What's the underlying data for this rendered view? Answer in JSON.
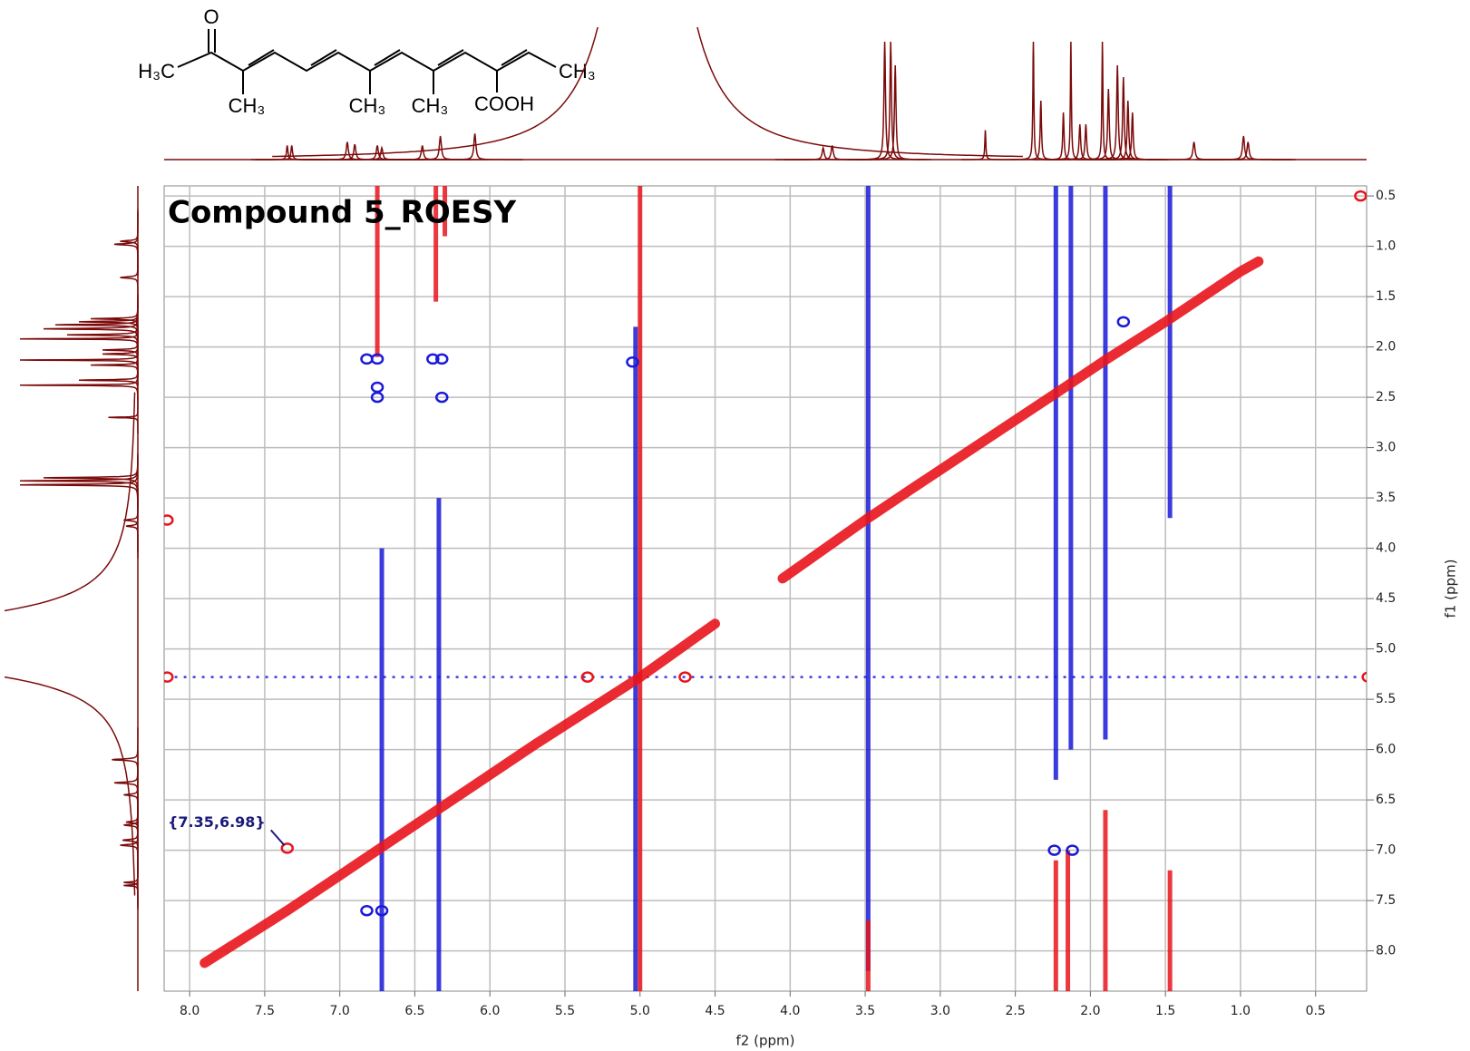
{
  "chart_data": {
    "type": "contour",
    "title": "Compound 5_ROESY",
    "xlabel": "f2 (ppm)",
    "ylabel": "f1 (ppm)",
    "annotation": "{7.35,6.98}",
    "xlim": [
      8.17,
      0.16
    ],
    "ylim": [
      0.4,
      8.4
    ],
    "xticks": [
      {
        "value": 8,
        "label": "8.0"
      },
      7.5,
      {
        "value": 7,
        "label": "7.0"
      },
      6.5,
      {
        "value": 6,
        "label": "6.0"
      },
      5.5,
      {
        "value": 5,
        "label": "5.0"
      },
      4.5,
      {
        "value": 4,
        "label": "4.0"
      },
      3.5,
      {
        "value": 3,
        "label": "3.0"
      },
      2.5,
      {
        "value": 2,
        "label": "2.0"
      },
      1.5,
      {
        "value": 1,
        "label": "1.0"
      },
      0.5
    ],
    "yticks": [
      0.5,
      {
        "value": 1,
        "label": "1.0"
      },
      1.5,
      {
        "value": 2,
        "label": "2.0"
      },
      2.5,
      {
        "value": 3,
        "label": "3.0"
      },
      3.5,
      {
        "value": 4,
        "label": "4.0"
      },
      4.5,
      {
        "value": 5,
        "label": "5.0"
      },
      5.5,
      {
        "value": 6,
        "label": "6.0"
      },
      6.5,
      {
        "value": 7,
        "label": "7.0"
      },
      7.5,
      {
        "value": 8,
        "label": "8.0"
      }
    ],
    "grid": true,
    "diagonal": {
      "color": "#e8141c",
      "x": [
        7.9,
        7.35,
        6.75,
        6.35,
        5.7,
        5.0,
        4.5,
        null,
        4.05,
        3.5,
        3.2,
        2.25,
        1.9,
        1.5,
        1.0,
        0.88
      ],
      "y": [
        8.12,
        7.6,
        7.0,
        6.6,
        5.95,
        5.28,
        4.75,
        null,
        4.3,
        3.72,
        3.42,
        2.48,
        2.13,
        1.75,
        1.25,
        1.15
      ]
    },
    "series": [
      {
        "color": "#e8141c",
        "x": [
          7.35,
          5.35,
          4.7,
          8.15,
          8.15,
          0.15,
          0.2
        ],
        "y": [
          6.98,
          5.28,
          5.28,
          3.72,
          5.28,
          5.28,
          0.5
        ]
      },
      {
        "color": "#1a1ad8",
        "x": [
          6.82,
          6.75,
          6.75,
          6.75,
          6.38,
          6.32,
          6.32,
          5.05,
          6.72,
          6.82,
          2.24,
          2.12,
          1.78
        ],
        "y": [
          2.12,
          2.12,
          2.4,
          2.5,
          2.12,
          2.12,
          2.5,
          2.15,
          7.6,
          7.6,
          7.0,
          7.0,
          1.75
        ]
      }
    ],
    "streaks": [
      {
        "color": "#e8141c",
        "x": [
          6.75,
          6.75
        ],
        "y": [
          0.4,
          2.1
        ]
      },
      {
        "color": "#e8141c",
        "x": [
          6.36,
          6.36
        ],
        "y": [
          0.4,
          1.55
        ]
      },
      {
        "color": "#e8141c",
        "x": [
          6.3,
          6.3
        ],
        "y": [
          0.4,
          0.9
        ]
      },
      {
        "color": "#1a1ad8",
        "x": [
          6.72,
          6.72
        ],
        "y": [
          4.0,
          8.4
        ]
      },
      {
        "color": "#1a1ad8",
        "x": [
          6.34,
          6.34
        ],
        "y": [
          3.5,
          8.4
        ]
      },
      {
        "color": "#1a1ad8",
        "x": [
          5.03,
          5.03
        ],
        "y": [
          1.8,
          8.4
        ]
      },
      {
        "color": "#e8141c",
        "x": [
          5.0,
          5.0
        ],
        "y": [
          0.4,
          8.4
        ]
      },
      {
        "color": "#1a1ad8",
        "x": [
          3.48,
          3.48
        ],
        "y": [
          0.4,
          8.2
        ]
      },
      {
        "color": "#e8141c",
        "x": [
          3.48,
          3.48
        ],
        "y": [
          7.7,
          8.4
        ]
      },
      {
        "color": "#1a1ad8",
        "x": [
          2.23,
          2.23
        ],
        "y": [
          0.4,
          6.3
        ]
      },
      {
        "color": "#1a1ad8",
        "x": [
          2.13,
          2.13
        ],
        "y": [
          0.4,
          6.0
        ]
      },
      {
        "color": "#1a1ad8",
        "x": [
          1.9,
          1.9
        ],
        "y": [
          0.4,
          5.9
        ]
      },
      {
        "color": "#1a1ad8",
        "x": [
          1.47,
          1.47
        ],
        "y": [
          0.4,
          3.7
        ]
      },
      {
        "color": "#e8141c",
        "x": [
          2.23,
          2.23
        ],
        "y": [
          7.1,
          8.4
        ]
      },
      {
        "color": "#e8141c",
        "x": [
          2.15,
          2.15
        ],
        "y": [
          7.0,
          8.4
        ]
      },
      {
        "color": "#e8141c",
        "x": [
          1.9,
          1.9
        ],
        "y": [
          6.6,
          8.4
        ]
      },
      {
        "color": "#e8141c",
        "x": [
          1.47,
          1.47
        ],
        "y": [
          7.2,
          8.4
        ]
      },
      {
        "color": "#1a1ad8",
        "x": [
          8.1,
          0.2
        ],
        "y": [
          5.28,
          5.28
        ]
      }
    ],
    "projection": {
      "color": "#7b0a0a",
      "x": [
        7.35,
        7.32,
        6.95,
        6.9,
        6.75,
        6.72,
        6.45,
        6.33,
        6.1,
        4.95,
        3.78,
        3.72,
        3.37,
        3.33,
        3.3,
        2.7,
        2.38,
        2.33,
        2.18,
        2.13,
        2.07,
        2.03,
        1.92,
        1.88,
        1.82,
        1.78,
        1.75,
        1.72,
        1.31,
        0.98,
        0.95
      ],
      "values": [
        12,
        12,
        15,
        13,
        12,
        10,
        12,
        20,
        22,
        420,
        10,
        12,
        100,
        100,
        80,
        25,
        100,
        50,
        40,
        100,
        30,
        30,
        100,
        60,
        80,
        70,
        50,
        40,
        15,
        20,
        15
      ],
      "widths": [
        0.006,
        0.006,
        0.008,
        0.008,
        0.008,
        0.008,
        0.008,
        0.008,
        0.008,
        0.2,
        0.008,
        0.008,
        0.006,
        0.006,
        0.006,
        0.004,
        0.004,
        0.005,
        0.005,
        0.004,
        0.006,
        0.006,
        0.004,
        0.006,
        0.006,
        0.006,
        0.006,
        0.006,
        0.008,
        0.008,
        0.008
      ]
    },
    "structure": [
      "O",
      "H₃C",
      "CH₃",
      "CH₃",
      "CH₃",
      "COOH",
      "CH₃"
    ]
  }
}
